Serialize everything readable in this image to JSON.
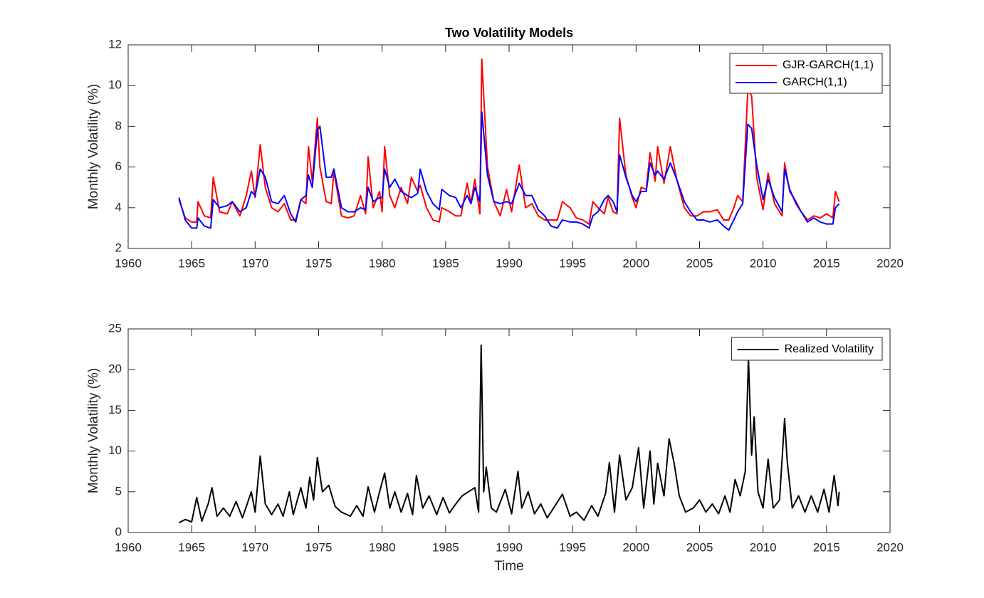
{
  "chart_data": [
    {
      "type": "line",
      "title": "Two Volatility Models",
      "ylabel": "Monthly Volatility (%)",
      "xlim": [
        1960,
        2020
      ],
      "xticks": [
        1960,
        1965,
        1970,
        1975,
        1980,
        1985,
        1990,
        1995,
        2000,
        2005,
        2010,
        2015,
        2020
      ],
      "ylim": [
        2,
        12
      ],
      "yticks": [
        2,
        4,
        6,
        8,
        10,
        12
      ],
      "grid": false,
      "legend": "northeast",
      "x": [
        1964.0,
        1964.5,
        1965.0,
        1965.4,
        1965.5,
        1966.0,
        1966.5,
        1966.7,
        1967.2,
        1967.8,
        1968.2,
        1968.8,
        1969.3,
        1969.7,
        1970.0,
        1970.4,
        1970.8,
        1971.3,
        1971.8,
        1972.3,
        1972.8,
        1973.2,
        1973.6,
        1974.0,
        1974.2,
        1974.5,
        1974.9,
        1975.1,
        1975.6,
        1976.0,
        1976.2,
        1976.8,
        1977.3,
        1977.8,
        1978.3,
        1978.7,
        1978.9,
        1979.3,
        1979.8,
        1980.0,
        1980.2,
        1980.6,
        1981.0,
        1981.5,
        1982.0,
        1982.3,
        1982.8,
        1983.0,
        1983.5,
        1984.0,
        1984.5,
        1984.7,
        1985.3,
        1985.8,
        1986.2,
        1986.7,
        1987.0,
        1987.3,
        1987.7,
        1987.85,
        1988.3,
        1988.8,
        1989.3,
        1989.8,
        1990.2,
        1990.8,
        1991.3,
        1991.8,
        1992.3,
        1992.8,
        1993.3,
        1993.8,
        1994.2,
        1994.8,
        1995.3,
        1995.8,
        1996.3,
        1996.6,
        1997.0,
        1997.5,
        1997.8,
        1998.2,
        1998.5,
        1998.7,
        1999.2,
        1999.7,
        2000.0,
        2000.4,
        2000.8,
        2001.1,
        2001.5,
        2001.7,
        2002.2,
        2002.7,
        2003.2,
        2003.8,
        2004.3,
        2004.8,
        2005.3,
        2005.8,
        2006.4,
        2006.9,
        2007.3,
        2007.7,
        2008.0,
        2008.4,
        2008.8,
        2009.1,
        2009.5,
        2010.0,
        2010.4,
        2010.9,
        2011.5,
        2011.7,
        2012.1,
        2012.6,
        2013.0,
        2013.5,
        2014.0,
        2014.5,
        2015.0,
        2015.5,
        2015.7,
        2016.0
      ],
      "series": [
        {
          "name": "GJR-GARCH(1,1)",
          "color": "#ff0000",
          "values": [
            4.4,
            3.5,
            3.3,
            3.3,
            4.3,
            3.6,
            3.5,
            5.5,
            3.8,
            3.7,
            4.3,
            3.6,
            4.6,
            5.8,
            4.5,
            7.1,
            5.0,
            4.0,
            3.8,
            4.2,
            3.4,
            3.4,
            4.4,
            4.2,
            7.0,
            5.3,
            8.4,
            6.0,
            4.3,
            4.2,
            5.8,
            3.6,
            3.5,
            3.6,
            4.6,
            3.7,
            6.5,
            4.0,
            4.8,
            3.8,
            7.0,
            4.6,
            4.0,
            5.0,
            4.2,
            5.5,
            4.8,
            5.1,
            4.0,
            3.4,
            3.3,
            4.0,
            3.8,
            3.6,
            3.6,
            5.2,
            4.2,
            5.4,
            3.7,
            11.3,
            6.0,
            4.3,
            3.6,
            4.9,
            3.8,
            6.1,
            4.0,
            4.2,
            3.6,
            3.4,
            3.4,
            3.4,
            4.3,
            4.0,
            3.5,
            3.4,
            3.2,
            4.3,
            4.0,
            3.7,
            4.5,
            3.8,
            3.7,
            8.4,
            5.6,
            4.5,
            4.0,
            5.0,
            4.9,
            6.7,
            5.3,
            7.0,
            5.2,
            7.0,
            5.4,
            4.0,
            3.6,
            3.6,
            3.8,
            3.8,
            3.9,
            3.4,
            3.4,
            4.0,
            4.6,
            4.3,
            9.8,
            9.5,
            5.5,
            3.9,
            5.7,
            4.2,
            3.6,
            6.2,
            4.8,
            4.3,
            3.8,
            3.4,
            3.6,
            3.5,
            3.7,
            3.5,
            4.8,
            4.3
          ]
        },
        {
          "name": "GARCH(1,1)",
          "color": "#0000ff",
          "values": [
            4.5,
            3.4,
            3.0,
            3.0,
            3.5,
            3.1,
            3.0,
            4.4,
            4.0,
            4.1,
            4.3,
            3.8,
            4.0,
            4.8,
            4.6,
            5.9,
            5.5,
            4.3,
            4.2,
            4.6,
            3.7,
            3.3,
            4.4,
            4.6,
            5.6,
            5.0,
            7.8,
            8.0,
            5.5,
            5.5,
            5.9,
            4.0,
            3.8,
            3.8,
            4.0,
            3.9,
            5.0,
            4.3,
            4.5,
            4.5,
            5.9,
            5.0,
            5.4,
            4.8,
            4.6,
            4.5,
            4.7,
            5.9,
            4.8,
            4.2,
            3.9,
            4.9,
            4.6,
            4.5,
            4.0,
            4.6,
            4.2,
            5.0,
            4.3,
            8.7,
            5.6,
            4.3,
            4.2,
            4.3,
            4.2,
            5.2,
            4.6,
            4.6,
            3.9,
            3.6,
            3.1,
            3.0,
            3.4,
            3.3,
            3.3,
            3.2,
            3.0,
            3.6,
            3.8,
            4.4,
            4.6,
            4.3,
            3.8,
            6.6,
            5.5,
            4.6,
            4.3,
            4.8,
            4.8,
            6.2,
            5.6,
            5.8,
            5.4,
            6.2,
            5.4,
            4.3,
            3.8,
            3.4,
            3.4,
            3.3,
            3.4,
            3.1,
            2.9,
            3.4,
            3.8,
            4.2,
            8.1,
            7.9,
            6.1,
            4.4,
            5.4,
            4.5,
            3.8,
            5.9,
            4.9,
            4.2,
            3.8,
            3.3,
            3.5,
            3.3,
            3.2,
            3.2,
            4.0,
            4.2
          ]
        }
      ]
    },
    {
      "type": "line",
      "ylabel": "Monthly Volatility (%)",
      "xlabel": "Time",
      "xlim": [
        1960,
        2020
      ],
      "xticks": [
        1960,
        1965,
        1970,
        1975,
        1980,
        1985,
        1990,
        1995,
        2000,
        2005,
        2010,
        2015,
        2020
      ],
      "ylim": [
        0,
        25
      ],
      "yticks": [
        0,
        5,
        10,
        15,
        20,
        25
      ],
      "grid": false,
      "legend": "northeast",
      "x": [
        1964.0,
        1964.5,
        1965.0,
        1965.4,
        1965.8,
        1966.3,
        1966.6,
        1967.0,
        1967.5,
        1968.0,
        1968.5,
        1969.0,
        1969.7,
        1970.0,
        1970.4,
        1970.8,
        1971.3,
        1971.8,
        1972.2,
        1972.7,
        1973.0,
        1973.6,
        1974.0,
        1974.3,
        1974.6,
        1974.9,
        1975.3,
        1975.8,
        1976.3,
        1976.8,
        1977.5,
        1978.0,
        1978.5,
        1978.9,
        1979.4,
        1979.8,
        1980.2,
        1980.6,
        1981.0,
        1981.5,
        1982.0,
        1982.4,
        1982.7,
        1983.2,
        1983.7,
        1984.3,
        1984.8,
        1985.3,
        1985.8,
        1986.3,
        1986.8,
        1987.3,
        1987.6,
        1987.8,
        1988.0,
        1988.2,
        1988.6,
        1989.0,
        1989.7,
        1990.2,
        1990.7,
        1991.0,
        1991.5,
        1992.0,
        1992.5,
        1993.0,
        1993.5,
        1994.2,
        1994.8,
        1995.3,
        1995.9,
        1996.5,
        1997.0,
        1997.6,
        1997.9,
        1998.3,
        1998.7,
        1999.2,
        1999.7,
        2000.2,
        2000.6,
        2001.1,
        2001.4,
        2001.7,
        2002.2,
        2002.6,
        2003.0,
        2003.4,
        2003.9,
        2004.5,
        2005.0,
        2005.5,
        2006.0,
        2006.5,
        2007.0,
        2007.4,
        2007.8,
        2008.2,
        2008.6,
        2008.85,
        2009.1,
        2009.3,
        2009.6,
        2010.0,
        2010.4,
        2010.8,
        2011.3,
        2011.7,
        2011.9,
        2012.3,
        2012.8,
        2013.3,
        2013.8,
        2014.3,
        2014.8,
        2015.2,
        2015.6,
        2015.9,
        2016.0
      ],
      "series": [
        {
          "name": "Realized Volatility",
          "color": "#000000",
          "values": [
            1.2,
            1.6,
            1.3,
            4.3,
            1.4,
            3.5,
            5.5,
            2.0,
            3.0,
            2.0,
            3.8,
            1.8,
            5.0,
            2.5,
            9.4,
            3.5,
            2.2,
            3.5,
            2.0,
            5.0,
            2.2,
            5.5,
            3.0,
            6.8,
            4.0,
            9.2,
            5.0,
            5.8,
            3.2,
            2.5,
            2.0,
            3.3,
            2.0,
            5.6,
            2.5,
            5.0,
            7.3,
            3.0,
            5.0,
            2.5,
            4.8,
            2.2,
            7.0,
            3.0,
            4.5,
            2.2,
            4.3,
            2.4,
            3.5,
            4.5,
            5.0,
            5.5,
            2.5,
            23.0,
            5.0,
            8.0,
            3.0,
            2.5,
            5.3,
            2.3,
            7.5,
            3.0,
            5.0,
            2.3,
            3.5,
            1.8,
            3.0,
            4.7,
            2.0,
            2.5,
            1.5,
            3.3,
            2.0,
            4.8,
            8.6,
            2.5,
            9.5,
            4.0,
            5.5,
            10.4,
            3.0,
            10.0,
            3.5,
            8.5,
            4.5,
            11.5,
            8.5,
            4.5,
            2.5,
            3.0,
            4.0,
            2.5,
            3.5,
            2.3,
            4.5,
            2.5,
            6.5,
            4.5,
            7.5,
            21.5,
            9.5,
            14.2,
            5.0,
            3.0,
            9.0,
            3.0,
            4.0,
            14.0,
            8.8,
            3.0,
            4.5,
            2.5,
            4.5,
            2.5,
            5.3,
            2.5,
            7.0,
            3.3,
            5.0
          ]
        }
      ]
    }
  ]
}
